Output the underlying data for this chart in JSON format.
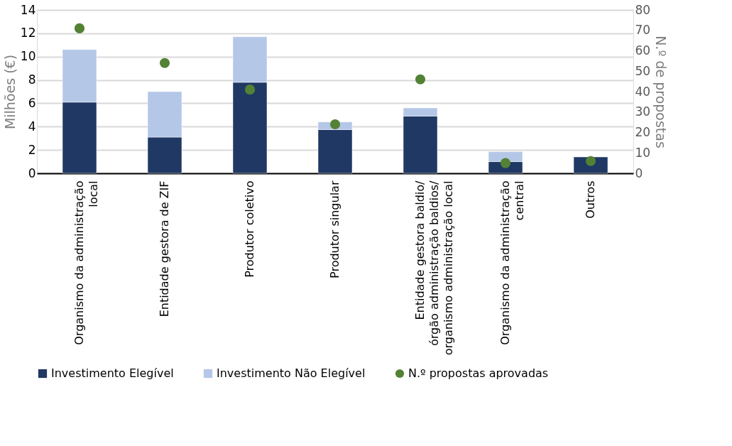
{
  "chart_data": {
    "type": "bar",
    "stacked": true,
    "categories": [
      "Organismo da administração local",
      "Entidade gestora de ZIF",
      "Produtor coletivo",
      "Produtor singular",
      "Entidade gestora  baldio/ órgão administração baldios/ organismo administração local",
      "Organismo da administração central",
      "Outros"
    ],
    "series": [
      {
        "name": "Investimento Elegível",
        "color": "#203864",
        "values": [
          6.1,
          3.1,
          7.8,
          3.75,
          4.9,
          1.0,
          1.4
        ]
      },
      {
        "name": "Investimento Não Elegível",
        "color": "#b4c7e7",
        "values": [
          4.5,
          3.9,
          3.9,
          0.65,
          0.7,
          0.85,
          null
        ]
      },
      {
        "name": "N.º propostas aprovadas",
        "color": "#548235",
        "type": "scatter",
        "axis": "y2",
        "values": [
          71,
          54,
          41,
          24,
          46,
          5,
          6
        ]
      }
    ],
    "ylabel": "Milhões (€)",
    "y2label": "N.º de propostas",
    "ylim": [
      0,
      14
    ],
    "yticks": [
      0,
      2,
      4,
      6,
      8,
      10,
      12,
      14
    ],
    "y2lim": [
      0,
      80
    ],
    "y2ticks": [
      0,
      10,
      20,
      30,
      40,
      50,
      60,
      70,
      80
    ],
    "grid": "y",
    "legend": "bottom",
    "marker": "circle"
  }
}
